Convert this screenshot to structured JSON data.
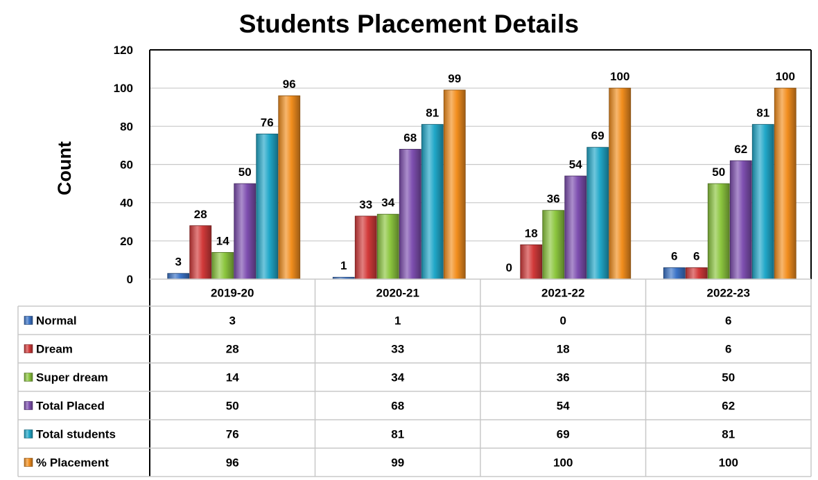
{
  "chart_data": {
    "type": "bar",
    "title": "Students Placement Details",
    "xlabel": "",
    "ylabel": "Count",
    "ylim": [
      0,
      120
    ],
    "yticks": [
      0,
      20,
      40,
      60,
      80,
      100,
      120
    ],
    "grid": true,
    "legend": "data-table",
    "categories": [
      "2019-20",
      "2020-21",
      "2021-22",
      "2022-23"
    ],
    "series": [
      {
        "name": "Normal",
        "color": "#3C74C8",
        "values": [
          3,
          1,
          0,
          6
        ]
      },
      {
        "name": "Dream",
        "color": "#D23A3A",
        "values": [
          28,
          33,
          18,
          6
        ]
      },
      {
        "name": "Super dream",
        "color": "#8CC63F",
        "values": [
          14,
          34,
          36,
          50
        ]
      },
      {
        "name": "Total Placed",
        "color": "#7E4FB0",
        "values": [
          50,
          68,
          54,
          62
        ]
      },
      {
        "name": "Total students",
        "color": "#21A8C9",
        "values": [
          76,
          81,
          69,
          81
        ]
      },
      {
        "name": "% Placement",
        "color": "#F28E1E",
        "values": [
          96,
          99,
          100,
          100
        ]
      }
    ]
  }
}
